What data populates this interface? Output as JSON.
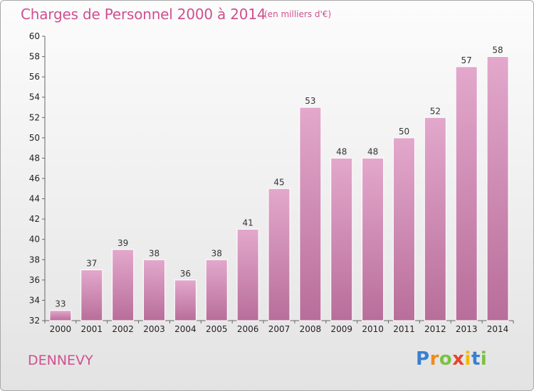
{
  "chart_data": {
    "type": "bar",
    "title": "Charges de Personnel 2000 à 2014",
    "subtitle": "(en milliers d'€)",
    "categories": [
      "2000",
      "2001",
      "2002",
      "2003",
      "2004",
      "2005",
      "2006",
      "2007",
      "2008",
      "2009",
      "2010",
      "2011",
      "2012",
      "2013",
      "2014"
    ],
    "values": [
      33,
      37,
      39,
      38,
      36,
      38,
      41,
      45,
      53,
      48,
      48,
      50,
      52,
      57,
      58
    ],
    "ylim": [
      32,
      60
    ],
    "yticks": [
      32,
      34,
      36,
      38,
      40,
      42,
      44,
      46,
      48,
      50,
      52,
      54,
      56,
      58,
      60
    ],
    "grid": false,
    "bar_color_top": "#e3a8cc",
    "bar_color_bottom": "#b86e9a"
  },
  "commune": "DENNEVY",
  "logo": {
    "letters": [
      "P",
      "r",
      "o",
      "x",
      "i",
      "t",
      "i"
    ],
    "colors": [
      "#3a7fd0",
      "#f08a1c",
      "#7cc142",
      "#e8432e",
      "#f5b800",
      "#3a7fd0",
      "#7cc142"
    ]
  }
}
